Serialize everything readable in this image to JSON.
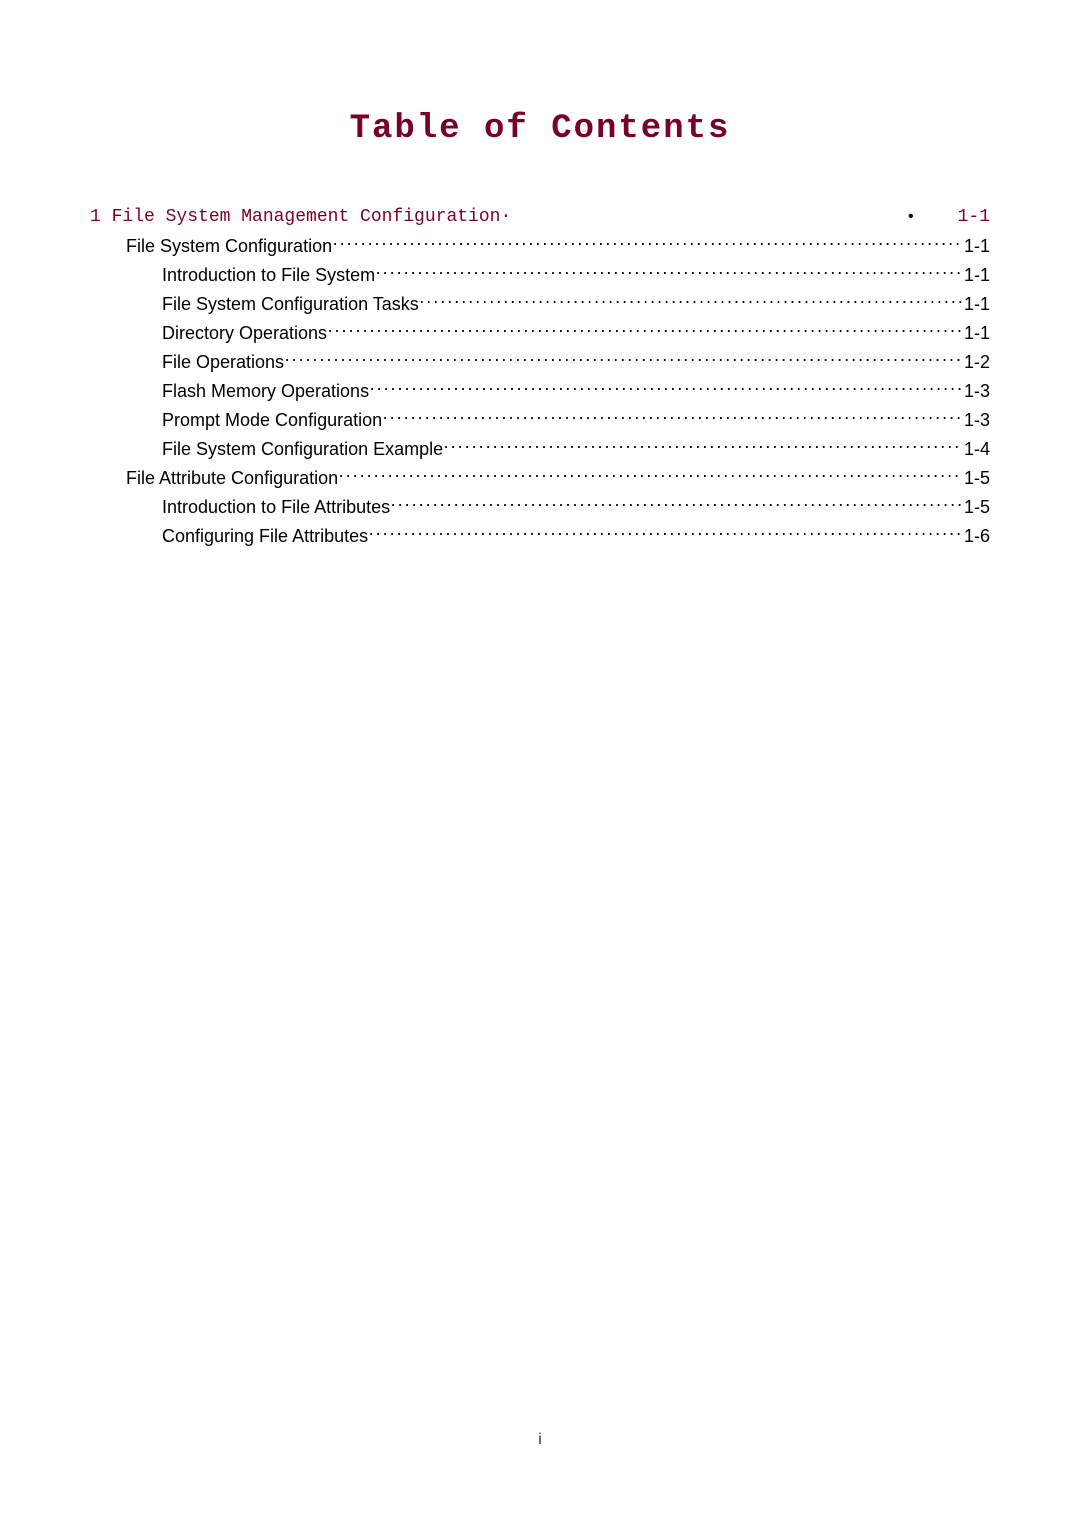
{
  "title": "Table of Contents",
  "footer_page_number": "i",
  "colors": {
    "heading": "#7a0026",
    "text": "#000000",
    "background": "#ffffff"
  },
  "typography": {
    "title_font": "Courier New",
    "title_size_pt": 26,
    "body_font": "Arial",
    "body_size_pt": 13,
    "level1_font": "Courier New"
  },
  "toc": [
    {
      "level": 1,
      "label": "1 File System Management Configuration·",
      "page": "1-1",
      "leader": "none",
      "color": "#7a0026"
    },
    {
      "level": 2,
      "label": "File System Configuration",
      "page": "1-1",
      "leader": "dots",
      "color": "#000000"
    },
    {
      "level": 3,
      "label": "Introduction to File System",
      "page": "1-1",
      "leader": "dots",
      "color": "#000000"
    },
    {
      "level": 3,
      "label": "File System Configuration Tasks",
      "page": "1-1",
      "leader": "dots",
      "color": "#000000"
    },
    {
      "level": 3,
      "label": "Directory Operations",
      "page": "1-1",
      "leader": "dots",
      "color": "#000000"
    },
    {
      "level": 3,
      "label": "File Operations",
      "page": "1-2",
      "leader": "dots",
      "color": "#000000"
    },
    {
      "level": 3,
      "label": "Flash Memory Operations",
      "page": "1-3",
      "leader": "dots",
      "color": "#000000"
    },
    {
      "level": 3,
      "label": "Prompt Mode Configuration",
      "page": "1-3",
      "leader": "dots",
      "color": "#000000"
    },
    {
      "level": 3,
      "label": "File System Configuration Example",
      "page": "1-4",
      "leader": "dots",
      "color": "#000000"
    },
    {
      "level": 2,
      "label": "File Attribute Configuration",
      "page": "1-5",
      "leader": "dots",
      "color": "#000000"
    },
    {
      "level": 3,
      "label": "Introduction to File Attributes",
      "page": "1-5",
      "leader": "dots",
      "color": "#000000"
    },
    {
      "level": 3,
      "label": "Configuring File Attributes",
      "page": "1-6",
      "leader": "dots",
      "color": "#000000"
    }
  ]
}
